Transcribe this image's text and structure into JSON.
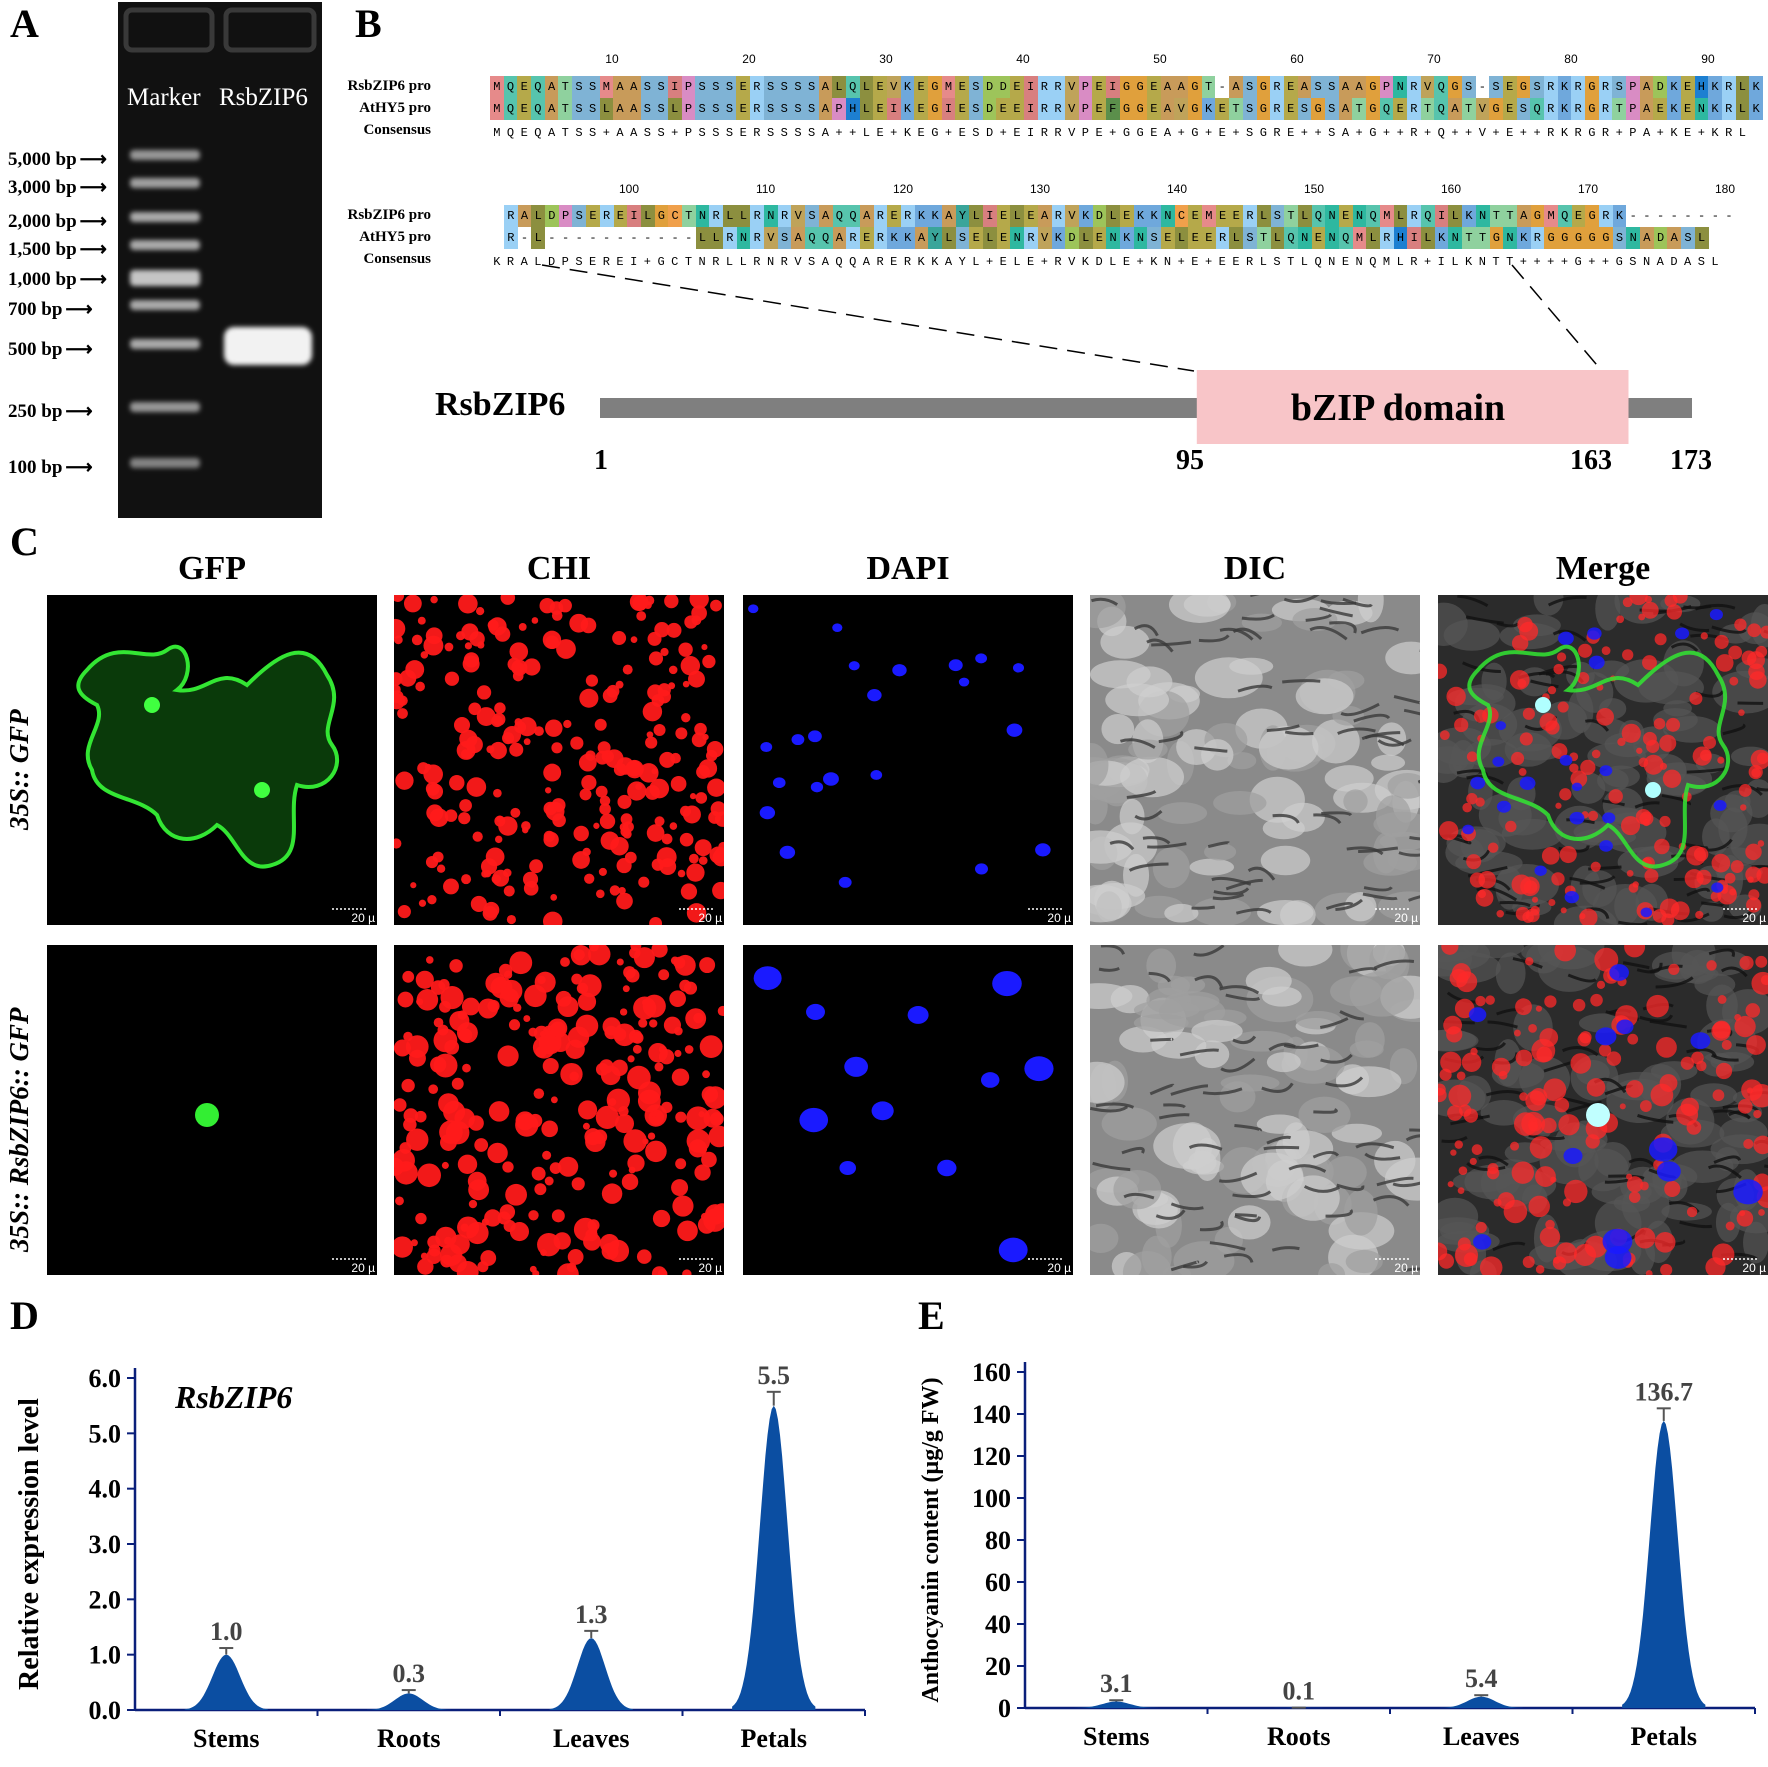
{
  "panels": {
    "A": "A",
    "B": "B",
    "C": "C",
    "D": "D",
    "E": "E"
  },
  "gel": {
    "lanes": [
      "Marker",
      "RsbZIP6"
    ],
    "markers": [
      "5,000 bp",
      "3,000 bp",
      "2,000 bp",
      "1,500 bp",
      "1,000 bp",
      "700 bp",
      "500 bp",
      "250 bp",
      "100 bp"
    ],
    "arrow": "⟶"
  },
  "alignment": {
    "names": [
      "RsbZIP6 pro",
      "AtHY5 pro",
      "Consensus"
    ],
    "ruler1": [
      "10",
      "20",
      "30",
      "40",
      "50",
      "60",
      "70",
      "80",
      "90"
    ],
    "ruler2": [
      "100",
      "110",
      "120",
      "130",
      "140",
      "150",
      "160",
      "170",
      "180"
    ],
    "block1": {
      "rsb": "MQEQATSSMAASSIPSSSERSSSSALQLEVKEGMESDDEIRRVPEIGGEAAGT-ASGREASSAAGPNRVQGS-SEGSRKRGRSPADKEHKRLK",
      "at": "MQEQATSSLAASSLPSSSERSSSSAPHLEIKEGIESDEEIRRVPEFGGEAVGKETSGRESGSATGQERTQATVGESQRKRGRTPAEKENKRLK",
      "cons": "MQEQATSS+AASS+PSSSERSSSSA++LE+KEG+ESD+EIRRVPE+GGEA+G+E+SGRE++SA+G++R+Q++V+E++RKRGR+PA+KE+KRL"
    },
    "block2": {
      "rsb": "RALDPSEREILGCTNRLLRNRVSAQQARERKKAYLIELEARVKDLEKKNCEMEERLSTLQNENQMLRQILKNTTAGMQEGRK--------",
      "at": "R-L-----------LLRNRVSAQQARERKKAYLSELENRVKDLENKNSELEERLSTLQNENQMLRHILKNTTGNKRGGGGGSNADASL",
      "cons": "KRALDPSEREI+GCTNRLLRNRVSAQQARERKKAYL+ELE+RVKDLE+KN+E+EERLSTLQNENQMLR+ILKNTT++++G++GSNADASL"
    }
  },
  "domain": {
    "protein": "RsbZIP6",
    "domain_label": "bZIP domain",
    "positions": [
      "1",
      "95",
      "163",
      "173"
    ],
    "start": 1,
    "domain_start": 95,
    "domain_end": 163,
    "end": 173,
    "bar_color": "#7f7f7f",
    "domain_color": "#f8c5c8"
  },
  "microscopy": {
    "columns": [
      "GFP",
      "CHI",
      "DAPI",
      "DIC",
      "Merge"
    ],
    "rows": [
      "35S:: GFP",
      "35S:: RsbZIP6:: GFP"
    ],
    "scale_label": "20 µ"
  },
  "chart_data": [
    {
      "type": "area",
      "title": "RsbZIP6",
      "xlabel": "",
      "ylabel": "Relative expression level",
      "categories": [
        "Stems",
        "Roots",
        "Leaves",
        "Petals"
      ],
      "values": [
        1.0,
        0.3,
        1.3,
        5.5
      ],
      "value_labels": [
        "1.0",
        "0.3",
        "1.3",
        "5.5"
      ],
      "errors": [
        0.12,
        0.06,
        0.13,
        0.25
      ],
      "yticks": [
        "0.0",
        "1.0",
        "2.0",
        "3.0",
        "4.0",
        "5.0",
        "6.0"
      ],
      "ylim": [
        0,
        6
      ],
      "color": "#0b4ea2",
      "grid": false
    },
    {
      "type": "area",
      "title": "",
      "xlabel": "",
      "ylabel": "Anthocyanin content (µg/g FW)",
      "categories": [
        "Stems",
        "Roots",
        "Leaves",
        "Petals"
      ],
      "values": [
        3.1,
        0.1,
        5.4,
        136.7
      ],
      "value_labels": [
        "3.1",
        "0.1",
        "5.4",
        "136.7"
      ],
      "errors": [
        0.6,
        0.05,
        0.7,
        6.0
      ],
      "yticks": [
        "0",
        "20",
        "40",
        "60",
        "80",
        "100",
        "120",
        "140",
        "160"
      ],
      "ylim": [
        0,
        160
      ],
      "color": "#0b4ea2",
      "grid": false
    }
  ]
}
